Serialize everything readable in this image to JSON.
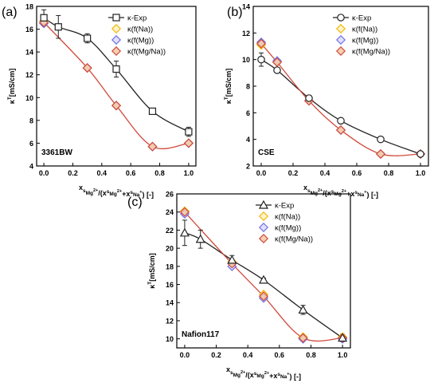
{
  "colors": {
    "exp": "#222222",
    "na": "#f2b705",
    "mg": "#6f6fe6",
    "mgna": "#d04a3c",
    "mgna_fill": "#f3c8a4",
    "na_fill": "#fff2c2",
    "mg_fill": "#dcdcfa"
  },
  "common": {
    "ylabel": "κ",
    "ylabel_sup": "T",
    "ylabel_unit": "[mS/cm]"
  },
  "chart_data": [
    {
      "panel_label": "(a)",
      "type": "scatter",
      "sample_label": "3361BW",
      "ylim": [
        4,
        18
      ],
      "yticks": [
        4,
        6,
        8,
        10,
        12,
        14,
        16,
        18
      ],
      "xlim": [
        -0.05,
        1.05
      ],
      "xticks": [
        "0.0",
        "0.2",
        "0.4",
        "0.6",
        "0.8",
        "1.0"
      ],
      "xlabel": "x_Mg2+ / (x_Mg2+ + x_Na+) [-]",
      "legend_position": "top-right",
      "series": [
        {
          "name": "κ-Exp",
          "marker": "square",
          "x": [
            0.0,
            0.1,
            0.3,
            0.5,
            0.75,
            1.0
          ],
          "y": [
            17.0,
            16.2,
            15.2,
            12.5,
            8.8,
            7.0
          ],
          "err": [
            0.7,
            1.0,
            0.4,
            0.7,
            0.1,
            0.4
          ]
        },
        {
          "name": "κ(f(Na))",
          "marker": "diamond",
          "x": [
            0.0,
            0.3,
            0.5,
            0.75,
            1.0
          ],
          "y": [
            16.7,
            12.6,
            9.3,
            5.7,
            6.0
          ]
        },
        {
          "name": "κ(f(Mg))",
          "marker": "diamond",
          "x": [
            0.0,
            0.3,
            0.5,
            0.75,
            1.0
          ],
          "y": [
            16.5,
            12.6,
            9.3,
            5.7,
            6.0
          ]
        },
        {
          "name": "κ(f(Mg/Na))",
          "marker": "diamond",
          "x": [
            0.0,
            0.3,
            0.5,
            0.75,
            1.0
          ],
          "y": [
            16.6,
            12.6,
            9.3,
            5.7,
            6.0
          ]
        }
      ]
    },
    {
      "panel_label": "(b)",
      "type": "scatter",
      "sample_label": "CSE",
      "ylim": [
        2,
        14
      ],
      "yticks": [
        2,
        4,
        6,
        8,
        10,
        12,
        14
      ],
      "xlim": [
        -0.05,
        1.05
      ],
      "xticks": [
        "0.0",
        "0.2",
        "0.4",
        "0.6",
        "0.8",
        "1.0"
      ],
      "xlabel": "x_Mg2+ / (x_Mg2+ + x_Na+) [-]",
      "legend_position": "top-right",
      "series": [
        {
          "name": "κ-Exp",
          "marker": "circle",
          "x": [
            0.0,
            0.1,
            0.3,
            0.5,
            0.75,
            1.0
          ],
          "y": [
            10.0,
            9.2,
            7.1,
            5.4,
            4.0,
            2.9
          ],
          "err": [
            0.5,
            0.1,
            0.2,
            0.1,
            0.1,
            0.2
          ]
        },
        {
          "name": "κ(f(Na))",
          "marker": "diamond",
          "x": [
            0.0,
            0.1,
            0.3,
            0.5,
            0.75,
            1.0
          ],
          "y": [
            11.1,
            9.8,
            6.9,
            4.7,
            2.9,
            2.9
          ]
        },
        {
          "name": "κ(f(Mg))",
          "marker": "diamond",
          "x": [
            0.0,
            0.1,
            0.3,
            0.5,
            0.75,
            1.0
          ],
          "y": [
            11.3,
            9.9,
            6.9,
            4.7,
            2.9,
            2.9
          ]
        },
        {
          "name": "κ(f(Mg/Na))",
          "marker": "diamond",
          "x": [
            0.0,
            0.1,
            0.3,
            0.5,
            0.75,
            1.0
          ],
          "y": [
            11.2,
            9.8,
            6.9,
            4.7,
            2.9,
            2.9
          ]
        }
      ]
    },
    {
      "panel_label": "(c)",
      "type": "scatter",
      "sample_label": "Nafion117",
      "ylim": [
        9,
        26
      ],
      "yticks": [
        10,
        12,
        14,
        16,
        18,
        20,
        22,
        24,
        26
      ],
      "xlim": [
        -0.05,
        1.05
      ],
      "xticks": [
        "0.0",
        "0.2",
        "0.4",
        "0.6",
        "0.8",
        "1.0"
      ],
      "xlabel": "x_Mg2+ / (x_Mg2+ + x_Na+) [-]",
      "legend_position": "top-right",
      "series": [
        {
          "name": "κ-Exp",
          "marker": "triangle",
          "x": [
            0.0,
            0.1,
            0.3,
            0.5,
            0.75,
            1.0
          ],
          "y": [
            21.7,
            21.0,
            18.7,
            16.5,
            13.2,
            10.1
          ],
          "err": [
            1.4,
            1.0,
            0.5,
            0.2,
            0.5,
            0.4
          ]
        },
        {
          "name": "κ(f(Na))",
          "marker": "diamond",
          "x": [
            0.0,
            0.3,
            0.5,
            0.75,
            1.0
          ],
          "y": [
            24.1,
            18.5,
            14.9,
            10.2,
            10.2
          ]
        },
        {
          "name": "κ(f(Mg))",
          "marker": "diamond",
          "x": [
            0.0,
            0.3,
            0.5,
            0.75,
            1.0
          ],
          "y": [
            23.8,
            18.0,
            14.5,
            10.0,
            10.0
          ]
        },
        {
          "name": "κ(f(Mg/Na))",
          "marker": "diamond",
          "x": [
            0.0,
            0.3,
            0.5,
            0.75,
            1.0
          ],
          "y": [
            24.0,
            18.3,
            14.7,
            10.1,
            10.1
          ]
        }
      ]
    }
  ]
}
